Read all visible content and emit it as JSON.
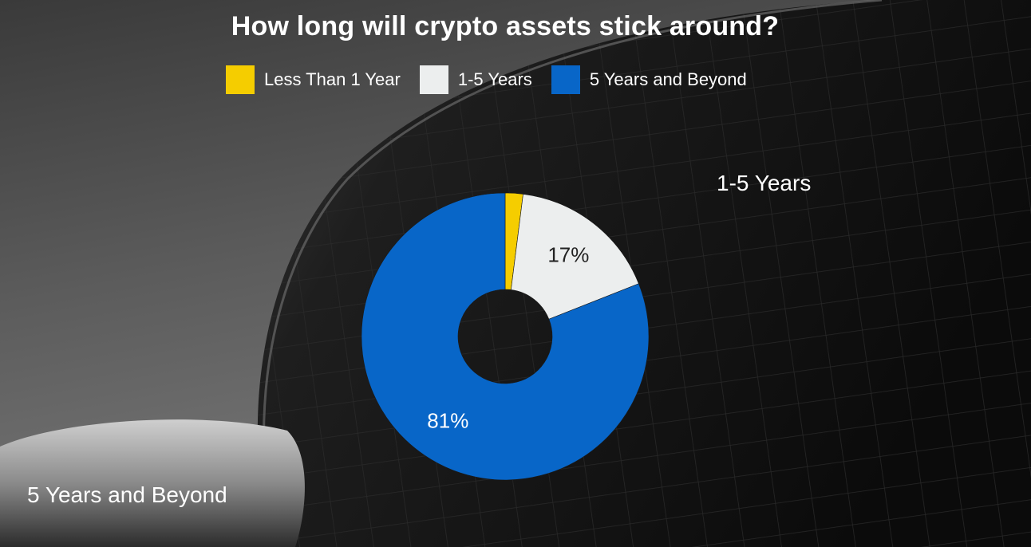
{
  "chart_data": {
    "type": "pie",
    "title": "How long will crypto assets stick around?",
    "donut": true,
    "legend_position": "top",
    "categories": [
      "Less Than 1 Year",
      "1-5 Years",
      "5 Years and Beyond"
    ],
    "values": [
      2,
      17,
      81
    ],
    "colors": [
      "#f5cd00",
      "#eceeee",
      "#0866c8"
    ],
    "data_labels": [
      "",
      "17%",
      "81%"
    ],
    "label_colors": [
      "#000000",
      "#222222",
      "#ffffff"
    ],
    "callouts": [
      "1-5 Years",
      "5 Years and Beyond"
    ]
  }
}
